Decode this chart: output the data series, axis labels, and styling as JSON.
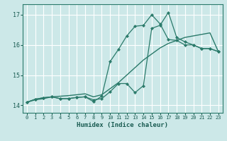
{
  "xlabel": "Humidex (Indice chaleur)",
  "xlim": [
    -0.5,
    23.5
  ],
  "ylim": [
    13.75,
    17.35
  ],
  "yticks": [
    14,
    15,
    16,
    17
  ],
  "xticks": [
    0,
    1,
    2,
    3,
    4,
    5,
    6,
    7,
    8,
    9,
    10,
    11,
    12,
    13,
    14,
    15,
    16,
    17,
    18,
    19,
    20,
    21,
    22,
    23
  ],
  "bg_color": "#cce8e8",
  "grid_color": "#ffffff",
  "line_color": "#2a7a6a",
  "line1_x": [
    0,
    1,
    2,
    3,
    4,
    5,
    6,
    7,
    8,
    9,
    10,
    11,
    12,
    13,
    14,
    15,
    16,
    17,
    18,
    19,
    20,
    21,
    22,
    23
  ],
  "line1_y": [
    14.1,
    14.18,
    14.22,
    14.28,
    14.3,
    14.32,
    14.35,
    14.38,
    14.28,
    14.35,
    14.55,
    14.75,
    15.0,
    15.25,
    15.5,
    15.7,
    15.9,
    16.05,
    16.15,
    16.25,
    16.3,
    16.35,
    16.4,
    15.78
  ],
  "line2_x": [
    0,
    1,
    2,
    3,
    4,
    5,
    6,
    7,
    8,
    9,
    10,
    11,
    12,
    13,
    14,
    15,
    16,
    17,
    18,
    19,
    20,
    21,
    22,
    23
  ],
  "line2_y": [
    14.1,
    14.2,
    14.25,
    14.28,
    14.22,
    14.22,
    14.26,
    14.28,
    14.18,
    14.22,
    14.45,
    14.72,
    14.72,
    14.42,
    14.65,
    16.55,
    16.65,
    17.08,
    16.25,
    16.1,
    16.0,
    15.88,
    15.88,
    15.78
  ],
  "line3_x": [
    0,
    1,
    2,
    3,
    4,
    5,
    6,
    7,
    8,
    9,
    10,
    11,
    12,
    13,
    14,
    15,
    16,
    17,
    18,
    19,
    20,
    21,
    22,
    23
  ],
  "line3_y": [
    14.1,
    14.2,
    14.25,
    14.28,
    14.22,
    14.22,
    14.26,
    14.28,
    14.12,
    14.3,
    15.45,
    15.85,
    16.3,
    16.62,
    16.65,
    17.0,
    16.7,
    16.18,
    16.15,
    16.0,
    16.0,
    15.88,
    15.88,
    15.78
  ]
}
